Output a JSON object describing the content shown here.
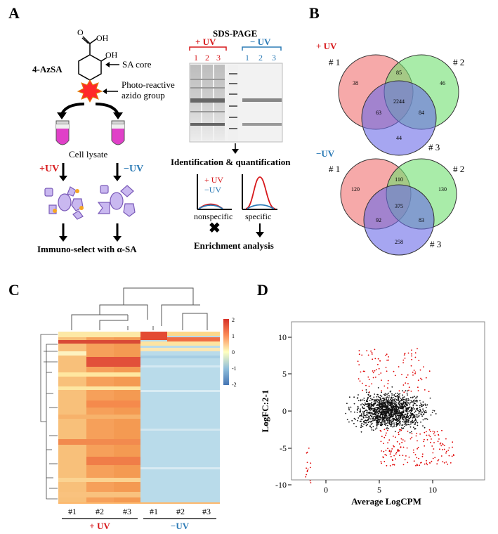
{
  "panels": {
    "a": {
      "letter": "A",
      "compound": "4-AzSA",
      "oh1": "OH",
      "o": "O",
      "oh2": "OH",
      "sa_core": "SA core",
      "photo_reactive_1": "Photo-reactive",
      "photo_reactive_2": "azido group",
      "cell_lysate": "Cell lysate",
      "plus_uv": "+UV",
      "minus_uv": "−UV",
      "immuno": "Immuno-select with α-SA",
      "sds_page": "SDS-PAGE",
      "gel_plus_uv": "+ UV",
      "gel_minus_uv": "− UV",
      "lanes_plus": [
        "1",
        "2",
        "3"
      ],
      "lanes_minus": [
        "1",
        "2",
        "3"
      ],
      "identification": "Identification & quantification",
      "legend_plus": "+ UV",
      "legend_minus": "−UV",
      "nonspecific": "nonspecific",
      "specific": "specific",
      "enrichment": "Enrichment analysis"
    },
    "b": {
      "letter": "B",
      "plus_uv": "+ UV",
      "minus_uv": "−UV",
      "set_labels": [
        "# 1",
        "# 2",
        "# 3"
      ],
      "venn_plus": {
        "only1": "38",
        "only2": "46",
        "only3": "44",
        "v12": "85",
        "v13": "63",
        "v23": "84",
        "v123": "2244"
      },
      "venn_minus": {
        "only1": "120",
        "only2": "130",
        "only3": "258",
        "v12": "110",
        "v13": "92",
        "v23": "83",
        "v123": "375"
      }
    },
    "c": {
      "letter": "C",
      "columns": [
        "#1",
        "#2",
        "#3",
        "#1",
        "#2",
        "#3"
      ],
      "group_plus": "+ UV",
      "group_minus": "−UV",
      "colorbar_ticks": [
        "2",
        "1",
        "0",
        "-1",
        "-2"
      ]
    },
    "d": {
      "letter": "D",
      "xlabel": "Average LogCPM",
      "ylabel": "LogFC:2-1",
      "xticks": [
        "0",
        "5",
        "10"
      ],
      "yticks": [
        "10",
        "5",
        "0",
        "-5",
        "-10"
      ]
    }
  },
  "colors": {
    "red": "#d7191c",
    "blue": "#2c7bb6",
    "venn_red": "#f07070",
    "venn_green": "#6fe06f",
    "venn_blue": "#7a7ae8",
    "lavender": "#c9b8f0",
    "magenta": "#e040c8"
  }
}
